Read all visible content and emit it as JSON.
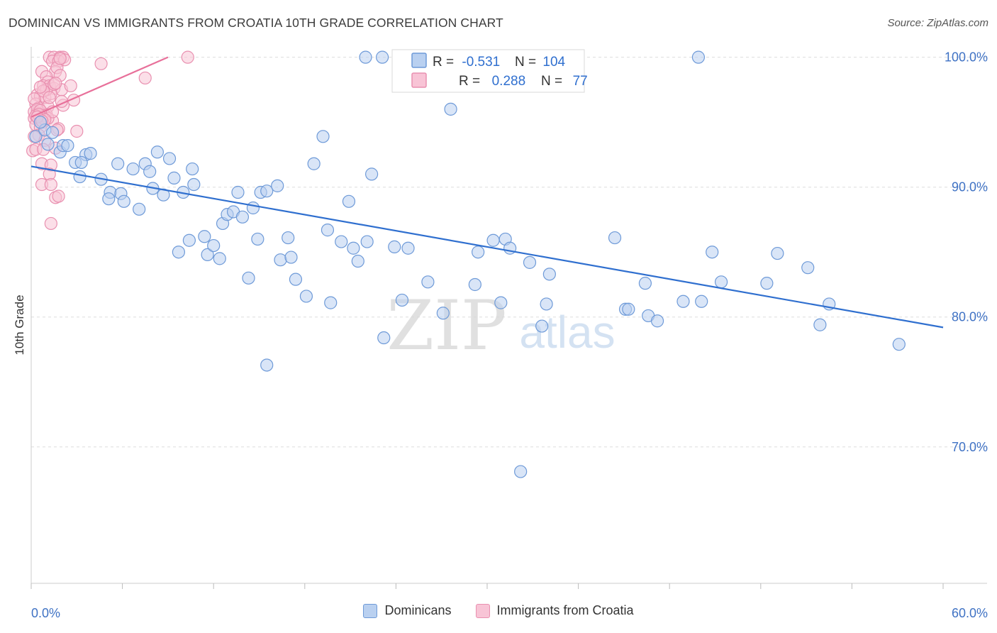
{
  "header": {
    "title": "DOMINICAN VS IMMIGRANTS FROM CROATIA 10TH GRADE CORRELATION CHART",
    "source": "Source: ZipAtlas.com"
  },
  "watermark": {
    "zip": "ZIP",
    "atlas": "atlas"
  },
  "colors": {
    "blue_fill": "#b9d0f0",
    "blue_stroke": "#6e9ad8",
    "blue_line": "#2f6fcf",
    "pink_fill": "#f8c4d6",
    "pink_stroke": "#e990b0",
    "pink_line": "#e8709a",
    "tick_label": "#3f72c4",
    "grid": "#dddddd"
  },
  "stats_box": {
    "rows": [
      {
        "r_label": "R = ",
        "r_value": "-0.531",
        "n_label": "N = ",
        "n_value": "104",
        "series": "blue"
      },
      {
        "r_label": "R = ",
        "r_value": " 0.288",
        "n_label": "N = ",
        "n_value": " 77",
        "series": "pink"
      }
    ]
  },
  "chart_data": {
    "type": "scatter",
    "title": "DOMINICAN VS IMMIGRANTS FROM CROATIA 10TH GRADE CORRELATION CHART",
    "xlabel": "",
    "ylabel": "10th Grade",
    "xlim": [
      0,
      60
    ],
    "ylim": [
      59.5,
      100.8
    ],
    "x_tick_labels": [
      {
        "value": 0,
        "label": "0.0%"
      },
      {
        "value": 60,
        "label": "60.0%"
      }
    ],
    "y_tick_labels": [
      {
        "value": 100,
        "label": "100.0%"
      },
      {
        "value": 90,
        "label": "90.0%"
      },
      {
        "value": 80,
        "label": "80.0%"
      },
      {
        "value": 70,
        "label": "70.0%"
      }
    ],
    "y_gridlines": [
      100,
      90,
      80,
      70
    ],
    "x_minor_ticks": [
      0,
      6,
      12,
      18,
      24,
      30,
      36,
      42,
      48,
      54,
      60
    ],
    "grid": true,
    "legend_position": "bottom",
    "series": [
      {
        "name": "Dominicans",
        "color": "#b9d0f0",
        "trendline": {
          "x": [
            0,
            60
          ],
          "y": [
            91.6,
            79.2
          ]
        },
        "points": [
          [
            0.3,
            93.9
          ],
          [
            0.9,
            94.4
          ],
          [
            1.4,
            94.2
          ],
          [
            1.9,
            92.7
          ],
          [
            2.1,
            93.2
          ],
          [
            2.4,
            93.2
          ],
          [
            2.9,
            91.9
          ],
          [
            3.2,
            90.8
          ],
          [
            3.6,
            92.5
          ],
          [
            3.9,
            92.6
          ],
          [
            3.3,
            91.9
          ],
          [
            4.6,
            90.6
          ],
          [
            5.2,
            89.6
          ],
          [
            5.1,
            89.1
          ],
          [
            5.9,
            89.5
          ],
          [
            6.1,
            88.9
          ],
          [
            5.7,
            91.8
          ],
          [
            6.7,
            91.4
          ],
          [
            7.1,
            88.3
          ],
          [
            7.5,
            91.8
          ],
          [
            7.8,
            91.2
          ],
          [
            8.0,
            89.9
          ],
          [
            8.3,
            92.7
          ],
          [
            8.7,
            89.4
          ],
          [
            9.1,
            92.2
          ],
          [
            9.4,
            90.7
          ],
          [
            10.0,
            89.6
          ],
          [
            10.7,
            90.2
          ],
          [
            10.6,
            91.4
          ],
          [
            9.7,
            85.0
          ],
          [
            10.4,
            85.9
          ],
          [
            11.4,
            86.2
          ],
          [
            11.6,
            84.8
          ],
          [
            12.0,
            85.5
          ],
          [
            12.4,
            84.5
          ],
          [
            12.6,
            87.2
          ],
          [
            12.9,
            87.9
          ],
          [
            13.3,
            88.1
          ],
          [
            13.6,
            89.6
          ],
          [
            13.9,
            87.7
          ],
          [
            14.6,
            88.4
          ],
          [
            14.3,
            83.0
          ],
          [
            14.9,
            86.0
          ],
          [
            15.1,
            89.6
          ],
          [
            15.5,
            89.7
          ],
          [
            16.2,
            90.1
          ],
          [
            16.4,
            84.4
          ],
          [
            16.9,
            86.1
          ],
          [
            17.1,
            84.6
          ],
          [
            17.4,
            82.9
          ],
          [
            18.1,
            81.6
          ],
          [
            18.6,
            91.8
          ],
          [
            19.2,
            93.9
          ],
          [
            19.5,
            86.7
          ],
          [
            19.7,
            81.1
          ],
          [
            20.4,
            85.8
          ],
          [
            20.9,
            88.9
          ],
          [
            21.2,
            85.3
          ],
          [
            21.5,
            84.3
          ],
          [
            22.1,
            85.8
          ],
          [
            22.4,
            91.0
          ],
          [
            23.2,
            78.4
          ],
          [
            23.9,
            85.4
          ],
          [
            24.4,
            81.3
          ],
          [
            24.8,
            85.3
          ],
          [
            26.1,
            82.7
          ],
          [
            27.1,
            80.3
          ],
          [
            27.6,
            96.0
          ],
          [
            29.2,
            82.5
          ],
          [
            29.4,
            85.0
          ],
          [
            30.4,
            85.9
          ],
          [
            30.9,
            81.1
          ],
          [
            31.2,
            86.0
          ],
          [
            31.5,
            85.3
          ],
          [
            32.2,
            68.1
          ],
          [
            32.8,
            84.2
          ],
          [
            33.6,
            79.3
          ],
          [
            33.9,
            81.0
          ],
          [
            34.1,
            83.3
          ],
          [
            38.4,
            86.1
          ],
          [
            39.1,
            80.6
          ],
          [
            39.3,
            80.6
          ],
          [
            40.4,
            82.6
          ],
          [
            40.6,
            80.1
          ],
          [
            41.2,
            79.7
          ],
          [
            42.9,
            81.2
          ],
          [
            44.1,
            81.2
          ],
          [
            44.8,
            85.0
          ],
          [
            45.4,
            82.7
          ],
          [
            48.4,
            82.6
          ],
          [
            49.1,
            84.9
          ],
          [
            51.1,
            83.8
          ],
          [
            51.9,
            79.4
          ],
          [
            52.5,
            81.0
          ],
          [
            57.1,
            77.9
          ],
          [
            15.5,
            76.3
          ],
          [
            22.0,
            100.0
          ],
          [
            23.1,
            100.0
          ],
          [
            25.9,
            100.0
          ],
          [
            32.9,
            100.0
          ],
          [
            43.9,
            100.0
          ],
          [
            26.0,
            100.0
          ],
          [
            0.6,
            95.0
          ],
          [
            1.1,
            93.3
          ]
        ]
      },
      {
        "name": "Immigrants from Croatia",
        "color": "#f8c4d6",
        "trendline": {
          "x": [
            0,
            9.0
          ],
          "y": [
            95.4,
            100.0
          ]
        },
        "points": [
          [
            1.2,
            100.0
          ],
          [
            1.5,
            100.0
          ],
          [
            1.9,
            100.0
          ],
          [
            2.1,
            100.0
          ],
          [
            1.4,
            99.7
          ],
          [
            1.8,
            99.7
          ],
          [
            4.6,
            99.5
          ],
          [
            10.3,
            100.0
          ],
          [
            0.7,
            98.9
          ],
          [
            1.6,
            98.9
          ],
          [
            1.0,
            98.5
          ],
          [
            1.7,
            99.2
          ],
          [
            1.1,
            98.1
          ],
          [
            1.9,
            98.6
          ],
          [
            7.5,
            98.4
          ],
          [
            0.8,
            97.8
          ],
          [
            1.2,
            97.8
          ],
          [
            1.5,
            97.6
          ],
          [
            2.0,
            97.5
          ],
          [
            2.6,
            97.8
          ],
          [
            0.4,
            97.1
          ],
          [
            0.6,
            97.0
          ],
          [
            0.9,
            96.9
          ],
          [
            1.3,
            97.2
          ],
          [
            2.8,
            96.7
          ],
          [
            0.3,
            96.4
          ],
          [
            0.5,
            96.1
          ],
          [
            1.1,
            96.2
          ],
          [
            2.1,
            96.3
          ],
          [
            0.2,
            95.8
          ],
          [
            0.4,
            95.7
          ],
          [
            0.7,
            95.5
          ],
          [
            1.0,
            95.6
          ],
          [
            0.2,
            95.3
          ],
          [
            0.5,
            95.2
          ],
          [
            0.8,
            95.0
          ],
          [
            1.4,
            95.1
          ],
          [
            0.3,
            94.8
          ],
          [
            0.6,
            94.6
          ],
          [
            1.8,
            94.5
          ],
          [
            3.0,
            94.3
          ],
          [
            0.5,
            94.0
          ],
          [
            0.9,
            93.6
          ],
          [
            0.1,
            92.8
          ],
          [
            0.3,
            92.9
          ],
          [
            0.8,
            92.9
          ],
          [
            1.6,
            93.0
          ],
          [
            0.7,
            91.8
          ],
          [
            1.3,
            91.7
          ],
          [
            1.2,
            91.0
          ],
          [
            0.7,
            90.2
          ],
          [
            1.3,
            90.2
          ],
          [
            1.6,
            89.2
          ],
          [
            1.8,
            89.3
          ],
          [
            1.3,
            87.2
          ],
          [
            0.2,
            96.8
          ],
          [
            0.4,
            96.0
          ],
          [
            0.6,
            95.9
          ],
          [
            0.9,
            95.5
          ],
          [
            1.1,
            95.3
          ],
          [
            0.3,
            95.5
          ],
          [
            0.5,
            95.6
          ],
          [
            1.0,
            97.5
          ],
          [
            1.5,
            97.9
          ],
          [
            2.2,
            99.8
          ],
          [
            0.8,
            97.4
          ],
          [
            1.2,
            96.9
          ],
          [
            0.6,
            97.7
          ],
          [
            1.7,
            94.4
          ],
          [
            0.2,
            93.9
          ],
          [
            2.0,
            96.6
          ],
          [
            1.4,
            95.8
          ],
          [
            0.9,
            95.2
          ],
          [
            0.4,
            95.4
          ],
          [
            0.7,
            95.1
          ],
          [
            1.9,
            99.9
          ],
          [
            1.6,
            98.0
          ]
        ]
      }
    ]
  },
  "legend": {
    "items": [
      {
        "label": "Dominicans",
        "series": "blue"
      },
      {
        "label": "Immigrants from Croatia",
        "series": "pink"
      }
    ]
  }
}
